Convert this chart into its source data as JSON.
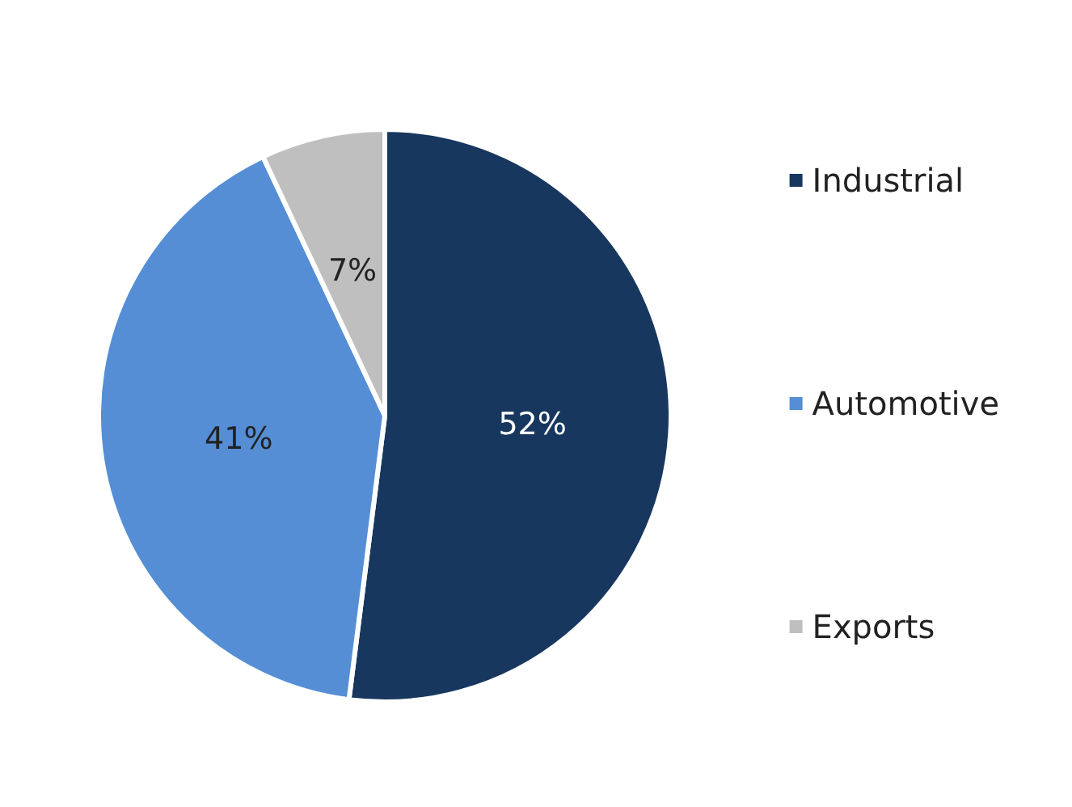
{
  "chart_data": {
    "type": "pie",
    "categories": [
      "Industrial",
      "Automotive",
      "Exports"
    ],
    "values": [
      52,
      41,
      7
    ],
    "colors": [
      "#17375e",
      "#558ed5",
      "#bfbfbf"
    ],
    "value_labels": [
      "52%",
      "41%",
      "7%"
    ],
    "legend": "right"
  }
}
